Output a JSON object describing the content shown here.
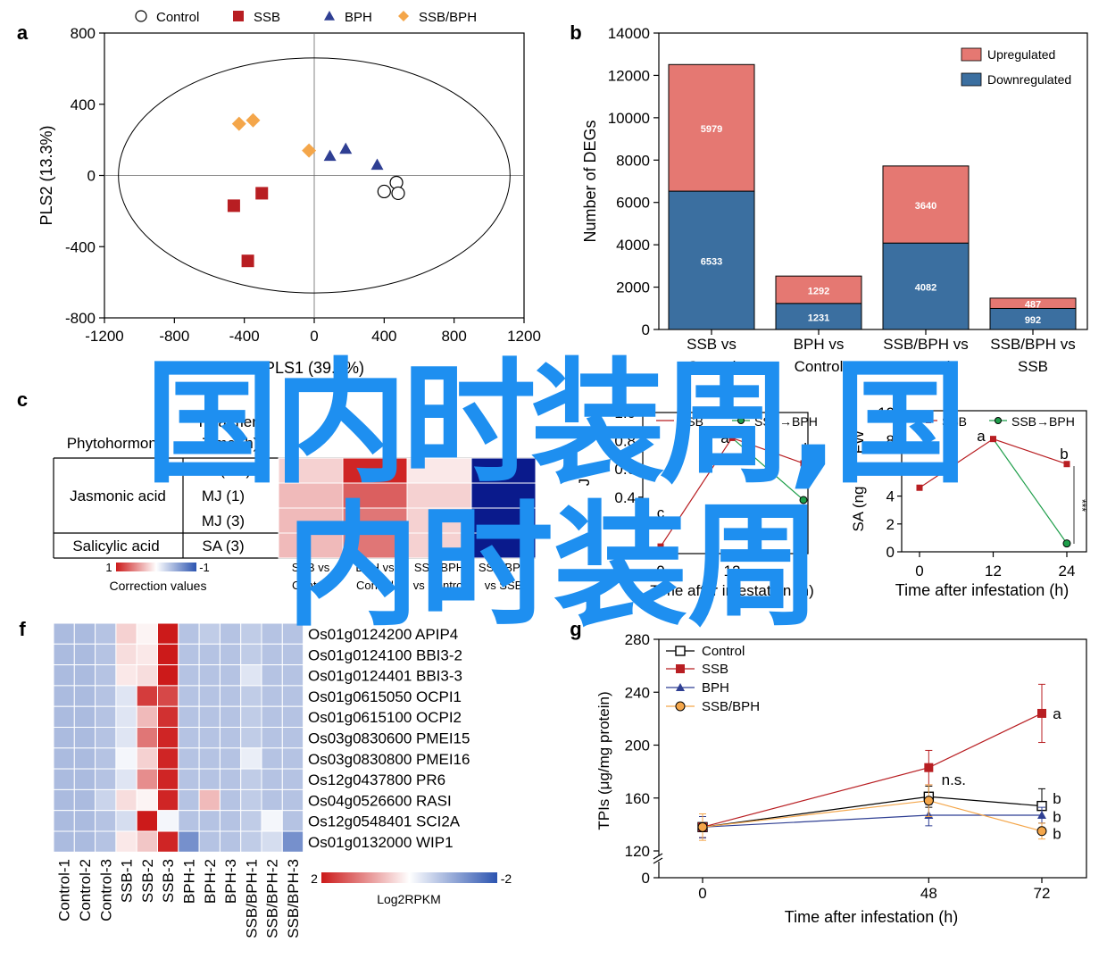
{
  "overlay": {
    "line1": "国内时装周,国",
    "line2": "内时装周"
  },
  "colors": {
    "upregulated": "#e57872",
    "downregulated": "#3b6fa0",
    "control": "#000000",
    "ssb": "#b81e22",
    "bph": "#2f3f93",
    "ssbbph": "#f4a64a",
    "heat_high": "#cc1a1a",
    "heat_low": "#2c54b0",
    "ja_green": "#1e9e4a"
  },
  "panels": {
    "a": "a",
    "b": "b",
    "c": "c",
    "f": "f",
    "g": "g"
  },
  "chart_data": [
    {
      "panel": "a",
      "type": "scatter",
      "xlabel": "PLS1 (39.5%)",
      "ylabel": "PLS2 (13.3%)",
      "xlim": [
        -1200,
        1200
      ],
      "ylim": [
        -800,
        800
      ],
      "xticks": [
        "-1200",
        "-800",
        "-400",
        "0",
        "400",
        "800",
        "1200"
      ],
      "yticks": [
        "800",
        "400",
        "0",
        "-400",
        "-800"
      ],
      "legend": "top",
      "series": [
        {
          "name": "Control",
          "marker": "circle",
          "points": [
            [
              470,
              -40
            ],
            [
              400,
              -90
            ],
            [
              480,
              -100
            ]
          ]
        },
        {
          "name": "SSB",
          "marker": "square",
          "points": [
            [
              -460,
              -170
            ],
            [
              -300,
              -100
            ],
            [
              -380,
              -480
            ]
          ]
        },
        {
          "name": "BPH",
          "marker": "triangle",
          "points": [
            [
              90,
              110
            ],
            [
              180,
              150
            ],
            [
              360,
              60
            ]
          ]
        },
        {
          "name": "SSB/BPH",
          "marker": "diamond",
          "points": [
            [
              -430,
              290
            ],
            [
              -350,
              310
            ],
            [
              -30,
              140
            ]
          ]
        }
      ],
      "ellipse": {
        "cx": 0,
        "cy": 0,
        "rx": 1120,
        "ry": 660
      }
    },
    {
      "panel": "b",
      "type": "bar",
      "stacked": true,
      "ylabel": "Number of DEGs",
      "ylim": [
        0,
        14000
      ],
      "yticks": [
        "0",
        "2000",
        "4000",
        "6000",
        "8000",
        "10000",
        "12000",
        "14000"
      ],
      "categories": [
        [
          "SSB vs",
          "Control"
        ],
        [
          "BPH vs",
          "Control"
        ],
        [
          "SSB/BPH vs",
          "Control"
        ],
        [
          "SSB/BPH vs",
          "SSB"
        ]
      ],
      "legend": "top-right",
      "series": [
        {
          "name": "Downregulated",
          "values": [
            6533,
            1231,
            4082,
            992
          ],
          "labels": [
            "6533",
            "1231",
            "4082",
            "992"
          ]
        },
        {
          "name": "Upregulated",
          "values": [
            5979,
            1292,
            3640,
            487
          ],
          "labels": [
            "5979",
            "1292",
            "3640",
            "487"
          ]
        }
      ]
    },
    {
      "panel": "c",
      "type": "heatmap",
      "headers": [
        "Phytohormone",
        "Treatment",
        "Time (h)"
      ],
      "groups": [
        {
          "name": "Jasmonic acid",
          "rows": [
            "MJ (0.5)",
            "MJ (1)",
            "MJ (3)"
          ]
        },
        {
          "name": "Salicylic acid",
          "rows": [
            "SA (3)"
          ]
        }
      ],
      "columns": [
        [
          "SSB vs",
          "Control"
        ],
        [
          "BPH vs",
          "Control"
        ],
        [
          "SSB/BPH",
          "vs Control"
        ],
        [
          "SSB/BPH",
          "vs SSB"
        ]
      ],
      "values": [
        [
          0.2,
          0.95,
          0.1,
          -1
        ],
        [
          0.3,
          0.7,
          0.2,
          -1
        ],
        [
          0.3,
          0.6,
          0.2,
          -1
        ],
        [
          0.3,
          0.6,
          0.2,
          -1
        ]
      ],
      "scale": {
        "title": "Correction values",
        "min_label": "-1",
        "max_label": "1"
      }
    },
    {
      "panel": "d",
      "type": "line",
      "ylabel_fragment": "J",
      "xticks": [
        "0",
        "12",
        "2"
      ],
      "ylim": [
        0,
        1.0
      ],
      "yticks": [
        "0.4",
        "0.6",
        "0.8",
        "1.0"
      ],
      "xlabel_fragment": "Time after infestation (h)",
      "series": [
        {
          "name": "SSB",
          "x": [
            0,
            12,
            24
          ],
          "y": [
            0.05,
            0.82,
            0.64
          ]
        },
        {
          "name": "SSB→BPH",
          "x": [
            12,
            24
          ],
          "y": [
            0.82,
            0.38
          ]
        }
      ],
      "annotations": [
        "c",
        "a",
        "b"
      ]
    },
    {
      "panel": "e",
      "type": "line",
      "ylabel_fragment": "SA (ng",
      "ylabel_fragment2": "FW",
      "xlabel": "Time after infestation (h)",
      "xticks": [
        "0",
        "12",
        "24"
      ],
      "yticks": [
        "0",
        "2",
        "4",
        "6",
        "8",
        "10"
      ],
      "ylim": [
        0,
        10
      ],
      "xlim": [
        0,
        24
      ],
      "series": [
        {
          "name": "SSB",
          "x": [
            0,
            12,
            24
          ],
          "y": [
            4.6,
            8.1,
            6.3
          ]
        },
        {
          "name": "SSB→BPH",
          "x": [
            12,
            24
          ],
          "y": [
            8.1,
            0.6
          ]
        }
      ],
      "annotations": [
        "a",
        "b",
        "***"
      ]
    },
    {
      "panel": "f",
      "type": "heatmap",
      "rows": [
        "Os01g0124200 APIP4",
        "Os01g0124100 BBI3-2",
        "Os01g0124401 BBI3-3",
        "Os01g0615050 OCPI1",
        "Os01g0615100 OCPI2",
        "Os03g0830600 PMEI15",
        "Os03g0830800 PMEI16",
        "Os12g0437800 PR6",
        "Os04g0526600 RASI",
        "Os12g0548401 SCI2A",
        "Os01g0132000 WIP1"
      ],
      "columns": [
        "Control-1",
        "Control-2",
        "Control-3",
        "SSB-1",
        "SSB-2",
        "SSB-3",
        "BPH-1",
        "BPH-2",
        "BPH-3",
        "SSB/BPH-1",
        "SSB/BPH-2",
        "SSB/BPH-3"
      ],
      "values": [
        [
          -0.8,
          -0.8,
          -0.7,
          0.4,
          0.1,
          2,
          -0.7,
          -0.6,
          -0.7,
          -0.6,
          -0.7,
          -0.7
        ],
        [
          -0.8,
          -0.8,
          -0.7,
          0.3,
          0.2,
          2,
          -0.7,
          -0.7,
          -0.7,
          -0.6,
          -0.7,
          -0.7
        ],
        [
          -0.8,
          -0.8,
          -0.7,
          0.2,
          0.3,
          2,
          -0.7,
          -0.7,
          -0.7,
          -0.3,
          -0.7,
          -0.7
        ],
        [
          -0.8,
          -0.8,
          -0.7,
          -0.3,
          1.7,
          1.6,
          -0.7,
          -0.7,
          -0.7,
          -0.6,
          -0.7,
          -0.7
        ],
        [
          -0.8,
          -0.8,
          -0.7,
          -0.3,
          0.6,
          1.8,
          -0.7,
          -0.7,
          -0.7,
          -0.6,
          -0.7,
          -0.7
        ],
        [
          -0.8,
          -0.8,
          -0.7,
          -0.3,
          1.2,
          1.9,
          -0.7,
          -0.7,
          -0.7,
          -0.6,
          -0.7,
          -0.7
        ],
        [
          -0.8,
          -0.8,
          -0.7,
          -0.1,
          0.4,
          1.9,
          -0.7,
          -0.7,
          -0.7,
          -0.2,
          -0.7,
          -0.7
        ],
        [
          -0.8,
          -0.8,
          -0.7,
          -0.3,
          1.0,
          1.9,
          -0.7,
          -0.7,
          -0.7,
          -0.6,
          -0.7,
          -0.7
        ],
        [
          -0.8,
          -0.8,
          -0.5,
          0.3,
          0.1,
          1.9,
          -0.7,
          0.6,
          -0.7,
          -0.6,
          -0.7,
          -0.7
        ],
        [
          -0.8,
          -0.8,
          -0.7,
          -0.4,
          2,
          -0.1,
          -0.7,
          -0.7,
          -0.7,
          -0.6,
          -0.1,
          -0.7
        ],
        [
          -0.8,
          -0.8,
          -0.7,
          0.2,
          0.5,
          1.9,
          -1.3,
          -0.7,
          -0.7,
          -0.6,
          -0.4,
          -1.3
        ]
      ],
      "scale": {
        "title": "Log2RPKM",
        "max_label": "2",
        "min_label": "-2"
      }
    },
    {
      "panel": "g",
      "type": "line",
      "ylabel": "TPIs (μg/mg protein)",
      "xlabel": "Time after infestation (h)",
      "xticks": [
        "0",
        "48",
        "72"
      ],
      "yticks": [
        "0",
        "120",
        "160",
        "200",
        "240",
        "280"
      ],
      "ylim": [
        120,
        280
      ],
      "axis_break": true,
      "legend": "top-left",
      "series": [
        {
          "name": "Control",
          "marker": "square-open",
          "x": [
            0,
            48,
            72
          ],
          "y": [
            138,
            161,
            154
          ],
          "err": [
            8,
            8,
            13
          ]
        },
        {
          "name": "SSB",
          "marker": "square",
          "x": [
            0,
            48,
            72
          ],
          "y": [
            138,
            183,
            224
          ],
          "err": [
            8,
            13,
            22
          ]
        },
        {
          "name": "BPH",
          "marker": "triangle",
          "x": [
            0,
            48,
            72
          ],
          "y": [
            138,
            147,
            147
          ],
          "err": [
            8,
            8,
            6
          ]
        },
        {
          "name": "SSB/BPH",
          "marker": "circle",
          "x": [
            0,
            48,
            72
          ],
          "y": [
            138,
            158,
            135
          ],
          "err": [
            10,
            12,
            6
          ]
        }
      ],
      "annotations": [
        {
          "text": "n.s.",
          "x": 48,
          "y": 174
        },
        {
          "text": "a",
          "x": 72,
          "y": 224
        },
        {
          "text": "b",
          "x": 72,
          "y": 160
        },
        {
          "text": "b",
          "x": 72,
          "y": 146
        },
        {
          "text": "b",
          "x": 72,
          "y": 133
        }
      ]
    }
  ]
}
